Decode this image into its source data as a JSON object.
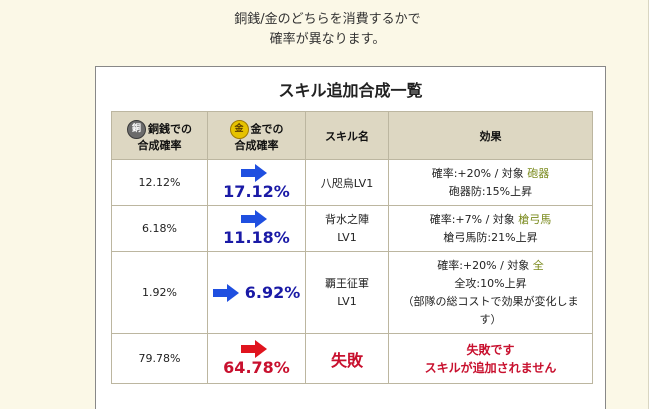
{
  "intro": {
    "line1": "銅銭/金のどちらを消費するかで",
    "line2": "確率が異なります。"
  },
  "panel": {
    "title": "スキル追加合成一覧",
    "headers": {
      "copper_coin": "銅",
      "copper_line1": "銅銭での",
      "copper_line2": "合成確率",
      "gold_coin": "金",
      "gold_line1": "金での",
      "gold_line2": "合成確率",
      "skill": "スキル名",
      "effect": "効果"
    },
    "rows": [
      {
        "copper": "12.12%",
        "gold": "17.12%",
        "skill1": "八咫烏LV1",
        "skill2": "",
        "eff1a": "確率:+20% / 対象 ",
        "eff1b": "砲器",
        "eff2": "砲器防:15%上昇",
        "eff3": ""
      },
      {
        "copper": "6.18%",
        "gold": "11.18%",
        "skill1": "背水之陣",
        "skill2": "LV1",
        "eff1a": "確率:+7% / 対象 ",
        "eff1b": "槍弓馬",
        "eff2": "槍弓馬防:21%上昇",
        "eff3": ""
      },
      {
        "copper": "1.92%",
        "gold": "6.92%",
        "skill1": "覇王征軍",
        "skill2": "LV1",
        "eff1a": "確率:+20% / 対象 ",
        "eff1b": "全",
        "eff2": "全攻:10%上昇",
        "eff3": "（部隊の総コストで効果が変化しま",
        "eff4": "す）"
      },
      {
        "copper": "79.78%",
        "gold": "64.78%",
        "skill1": "失敗",
        "fail1": "失敗です",
        "fail2": "スキルが追加されません"
      }
    ]
  },
  "colors": {
    "arrow_blue": "#1f4fe0",
    "arrow_red": "#e0141e",
    "header_bg": "#ddd7c2",
    "page_bg": "#fbf8e7"
  }
}
